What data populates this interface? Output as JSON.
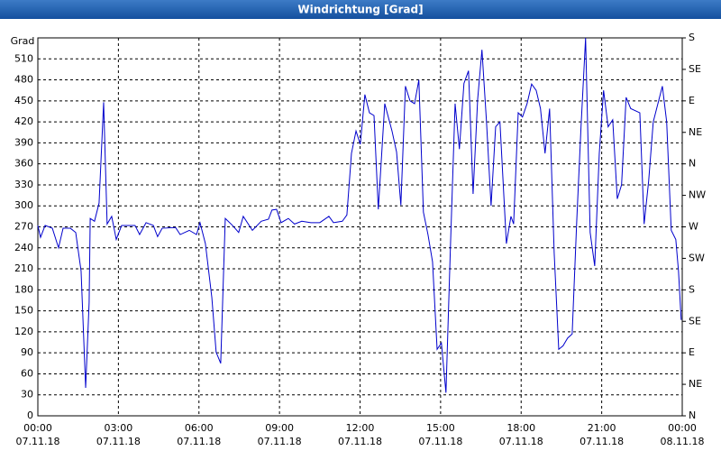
{
  "chart_data": {
    "type": "line",
    "title": "Windrichtung [Grad]",
    "y_label": "Grad",
    "xlim": [
      0,
      24
    ],
    "ylim": [
      0,
      540
    ],
    "y2lim": [
      0,
      540
    ],
    "grid": true,
    "xticks": [
      {
        "value": 0,
        "label": "00:00"
      },
      {
        "value": 3,
        "label": "03:00"
      },
      {
        "value": 6,
        "label": "06:00"
      },
      {
        "value": 9,
        "label": "09:00"
      },
      {
        "value": 12,
        "label": "12:00"
      },
      {
        "value": 15,
        "label": "15:00"
      },
      {
        "value": 18,
        "label": "18:00"
      },
      {
        "value": 21,
        "label": "21:00"
      },
      {
        "value": 24,
        "label": "00:00"
      }
    ],
    "xtick_dates": [
      "07.11.18",
      "07.11.18",
      "07.11.18",
      "07.11.18",
      "07.11.18",
      "07.11.18",
      "07.11.18",
      "07.11.18",
      "08.11.18"
    ],
    "yticks": [
      0,
      30,
      60,
      90,
      120,
      150,
      180,
      210,
      240,
      270,
      300,
      330,
      360,
      390,
      420,
      450,
      480,
      510
    ],
    "y2ticks": [
      {
        "value": 0,
        "label": "N"
      },
      {
        "value": 45,
        "label": "NE"
      },
      {
        "value": 90,
        "label": "E"
      },
      {
        "value": 135,
        "label": "SE"
      },
      {
        "value": 180,
        "label": "S"
      },
      {
        "value": 225,
        "label": "SW"
      },
      {
        "value": 270,
        "label": "W"
      },
      {
        "value": 315,
        "label": "NW"
      },
      {
        "value": 360,
        "label": "N"
      },
      {
        "value": 405,
        "label": "NE"
      },
      {
        "value": 450,
        "label": "E"
      },
      {
        "value": 495,
        "label": "SE"
      },
      {
        "value": 540,
        "label": "S"
      }
    ],
    "series": [
      {
        "color": "#0000cc",
        "x": [
          0,
          0.1,
          0.27,
          0.54,
          0.77,
          0.94,
          1.21,
          1.41,
          1.61,
          1.78,
          1.91,
          1.95,
          2.11,
          2.28,
          2.45,
          2.58,
          2.75,
          2.92,
          3.12,
          3.62,
          3.79,
          4.03,
          4.3,
          4.46,
          4.63,
          5.13,
          5.3,
          5.64,
          5.91,
          6.04,
          6.24,
          6.48,
          6.64,
          6.81,
          6.98,
          7.25,
          7.48,
          7.65,
          7.99,
          8.32,
          8.59,
          8.72,
          8.89,
          9.06,
          9.33,
          9.56,
          9.83,
          10.17,
          10.5,
          10.84,
          11.01,
          11.34,
          11.51,
          11.68,
          11.85,
          12.01,
          12.18,
          12.35,
          12.52,
          12.68,
          12.92,
          13.19,
          13.36,
          13.52,
          13.69,
          13.86,
          14.03,
          14.19,
          14.36,
          14.53,
          14.7,
          14.87,
          15.03,
          15.2,
          15.37,
          15.54,
          15.7,
          15.87,
          16.04,
          16.21,
          16.38,
          16.54,
          16.71,
          16.88,
          17.05,
          17.21,
          17.45,
          17.62,
          17.72,
          17.89,
          18.05,
          18.22,
          18.39,
          18.56,
          18.72,
          18.89,
          19.06,
          19.23,
          19.4,
          19.56,
          19.73,
          19.9,
          20.07,
          20.23,
          20.4,
          20.57,
          20.74,
          20.91,
          21.07,
          21.24,
          21.41,
          21.58,
          21.74,
          21.91,
          22.08,
          22.42,
          22.58,
          22.75,
          22.92,
          23.26,
          23.42,
          23.59,
          23.76,
          23.86,
          23.96
        ],
        "values": [
          272,
          255,
          272,
          268,
          240,
          268,
          268,
          262,
          207,
          40,
          162,
          282,
          278,
          304,
          448,
          274,
          285,
          252,
          272,
          272,
          259,
          276,
          272,
          256,
          268,
          269,
          259,
          265,
          259,
          276,
          246,
          169,
          91,
          75,
          282,
          272,
          262,
          285,
          265,
          278,
          281,
          294,
          295,
          276,
          282,
          274,
          278,
          276,
          276,
          285,
          276,
          278,
          287,
          375,
          407,
          388,
          459,
          433,
          429,
          295,
          446,
          407,
          377,
          301,
          471,
          450,
          446,
          480,
          291,
          259,
          220,
          95,
          104,
          33,
          246,
          446,
          381,
          475,
          493,
          317,
          452,
          523,
          420,
          300,
          413,
          420,
          246,
          285,
          274,
          433,
          427,
          446,
          474,
          465,
          439,
          375,
          439,
          233,
          95,
          100,
          111,
          117,
          278,
          413,
          540,
          262,
          214,
          375,
          465,
          413,
          423,
          310,
          330,
          455,
          439,
          433,
          274,
          336,
          420,
          471,
          420,
          265,
          252,
          207,
          137
        ]
      }
    ]
  }
}
